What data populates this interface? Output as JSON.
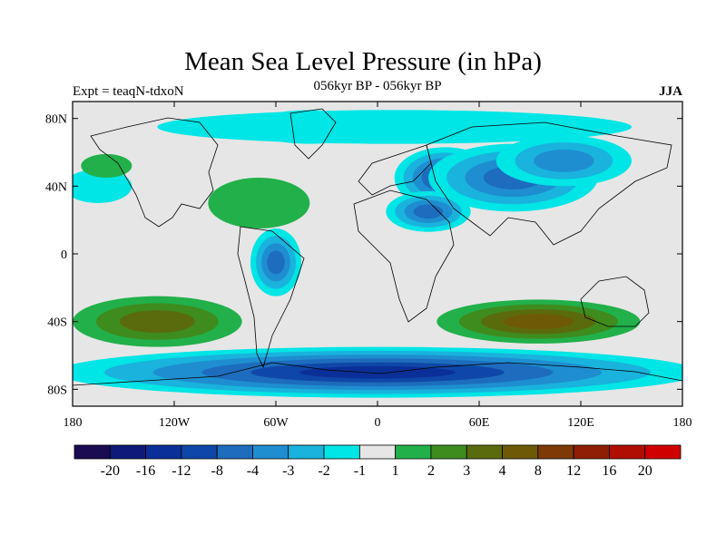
{
  "title": "Mean Sea Level Pressure (in hPa)",
  "subtitle": "056kyr BP - 056kyr BP",
  "experiment_label": "Expt = teaqN-tdxoN",
  "season_label": "JJA",
  "colors": {
    "ocean_neutral": "#e6e6e6",
    "palette": [
      "#1a0b52",
      "#0d1a7a",
      "#0b2f98",
      "#0f47a8",
      "#1d6cbd",
      "#1e8ed0",
      "#19b3dd",
      "#00e5e5",
      "#e6e6e6",
      "#22b04b",
      "#3e8c1e",
      "#5a6b0e",
      "#6e5a06",
      "#7e3a06",
      "#8e1e04",
      "#b00e02",
      "#d10000"
    ]
  },
  "chart_data": {
    "type": "heatmap",
    "projection": "cylindrical-equidistant",
    "lon_range": [
      -180,
      180
    ],
    "lat_range": [
      -90,
      90
    ],
    "x_ticks": [
      "180",
      "120W",
      "60W",
      "0",
      "60E",
      "120E",
      "180"
    ],
    "y_ticks": [
      "80N",
      "40N",
      "0",
      "40S",
      "80S"
    ],
    "colorbar": {
      "labels": [
        "-20",
        "-16",
        "-12",
        "-8",
        "-4",
        "-3",
        "-2",
        "-1",
        "1",
        "2",
        "3",
        "4",
        "8",
        "12",
        "16",
        "20"
      ],
      "boundaries": [
        -20,
        -16,
        -12,
        -8,
        -4,
        -3,
        -2,
        -1,
        1,
        2,
        3,
        4,
        8,
        12,
        16,
        20
      ]
    },
    "regions": [
      {
        "name": "arctic-greenland-low",
        "lon": -40,
        "lat": 75,
        "rx": 35,
        "ry": 10,
        "bin": 3
      },
      {
        "name": "arctic-ring",
        "lon": 10,
        "lat": 75,
        "rx": 140,
        "ry": 10,
        "bin": 7
      },
      {
        "name": "eurasia-low",
        "lon": 40,
        "lat": 45,
        "rx": 30,
        "ry": 18,
        "bin": 3
      },
      {
        "name": "central-asia-low",
        "lon": 80,
        "lat": 45,
        "rx": 50,
        "ry": 20,
        "bin": 4
      },
      {
        "name": "siberia-low",
        "lon": 110,
        "lat": 55,
        "rx": 40,
        "ry": 15,
        "bin": 5
      },
      {
        "name": "mideast-low",
        "lon": 30,
        "lat": 25,
        "rx": 25,
        "ry": 12,
        "bin": 4
      },
      {
        "name": "n-pacific-low",
        "lon": -165,
        "lat": 40,
        "rx": 20,
        "ry": 10,
        "bin": 7
      },
      {
        "name": "n-pacific-high",
        "lon": -160,
        "lat": 52,
        "rx": 15,
        "ry": 7,
        "bin": 9
      },
      {
        "name": "n-atlantic-high",
        "lon": -70,
        "lat": 30,
        "rx": 30,
        "ry": 15,
        "bin": 9
      },
      {
        "name": "s-america-low",
        "lon": -60,
        "lat": -5,
        "rx": 15,
        "ry": 20,
        "bin": 4
      },
      {
        "name": "s-pacific-high",
        "lon": -130,
        "lat": -40,
        "rx": 50,
        "ry": 15,
        "bin": 11
      },
      {
        "name": "indian-ocean-high",
        "lon": 95,
        "lat": -40,
        "rx": 60,
        "ry": 13,
        "bin": 12
      },
      {
        "name": "southern-ocean-low",
        "lon": 0,
        "lat": -70,
        "rx": 190,
        "ry": 15,
        "bin": 2
      }
    ]
  }
}
